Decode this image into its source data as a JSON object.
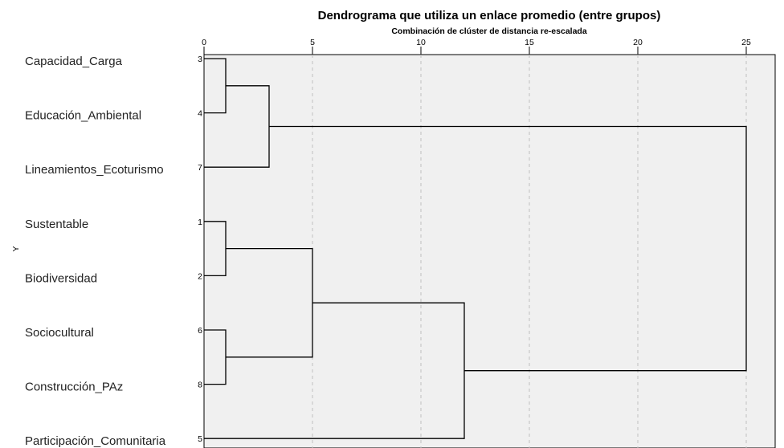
{
  "chart_data": {
    "type": "dendrogram",
    "title": "Dendrograma que utiliza un enlace promedio (entre grupos)",
    "subtitle": "Combinación de clúster de distancia re-escalada",
    "ylabel": "Y",
    "xlim": [
      0,
      25
    ],
    "ticks": [
      "0",
      "5",
      "10",
      "15",
      "20",
      "25"
    ],
    "grid": true,
    "leaves": [
      {
        "label": "Capacidad_Carga",
        "num": "3"
      },
      {
        "label": "Educación_Ambiental",
        "num": "4"
      },
      {
        "label": "Lineamientos_Ecoturismo",
        "num": "7"
      },
      {
        "label": "Sustentable",
        "num": "1"
      },
      {
        "label": "Biodiversidad",
        "num": "2"
      },
      {
        "label": "Sociocultural",
        "num": "6"
      },
      {
        "label": "Construcción_PAz",
        "num": "8"
      },
      {
        "label": "Participación_Comunitaria",
        "num": "5"
      }
    ],
    "merges": [
      {
        "a": "leaf:0",
        "b": "leaf:1",
        "height": 1
      },
      {
        "a": "leaf:3",
        "b": "leaf:4",
        "height": 1
      },
      {
        "a": "leaf:5",
        "b": "leaf:6",
        "height": 1
      },
      {
        "a": "node:0",
        "b": "leaf:2",
        "height": 3
      },
      {
        "a": "node:1",
        "b": "node:2",
        "height": 5
      },
      {
        "a": "node:4",
        "b": "leaf:7",
        "height": 12
      },
      {
        "a": "node:3",
        "b": "node:5",
        "height": 25
      }
    ]
  }
}
